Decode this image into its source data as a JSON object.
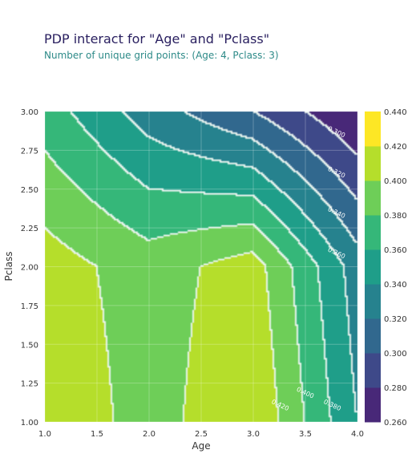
{
  "chart_data": {
    "type": "contour",
    "title": "PDP interact for \"Age\" and \"Pclass\"",
    "subtitle": "Number of unique grid points: (Age: 4, Pclass: 3)",
    "xlabel": "Age",
    "ylabel": "Pclass",
    "xlim": [
      1.0,
      4.0
    ],
    "ylim": [
      1.0,
      3.0
    ],
    "x_ticks": [
      "1.0",
      "1.5",
      "2.0",
      "2.5",
      "3.0",
      "3.5",
      "4.0"
    ],
    "y_ticks": [
      "1.00",
      "1.25",
      "1.50",
      "1.75",
      "2.00",
      "2.25",
      "2.50",
      "2.75",
      "3.00"
    ],
    "contour_levels": [
      0.26,
      0.28,
      0.3,
      0.32,
      0.34,
      0.36,
      0.38,
      0.4,
      0.42,
      0.44
    ],
    "contour_labels": [
      "0.300",
      "0.320",
      "0.340",
      "0.360",
      "0.380",
      "0.400",
      "0.420"
    ],
    "colorbar_ticks": [
      "0.440",
      "0.420",
      "0.400",
      "0.380",
      "0.360",
      "0.340",
      "0.320",
      "0.300",
      "0.280",
      "0.260"
    ],
    "colorscale": [
      "#440154",
      "#482878",
      "#3e4989",
      "#31688e",
      "#26828e",
      "#1f9e89",
      "#35b779",
      "#6ece58",
      "#b5de2b",
      "#fde725"
    ],
    "x": [
      1.0,
      2.0,
      3.0,
      4.0
    ],
    "y": [
      1.0,
      2.0,
      3.0
    ],
    "z": [
      [
        0.44,
        0.41,
        0.44,
        0.36
      ],
      [
        0.43,
        0.41,
        0.43,
        0.35
      ],
      [
        0.39,
        0.35,
        0.32,
        0.28
      ]
    ]
  }
}
